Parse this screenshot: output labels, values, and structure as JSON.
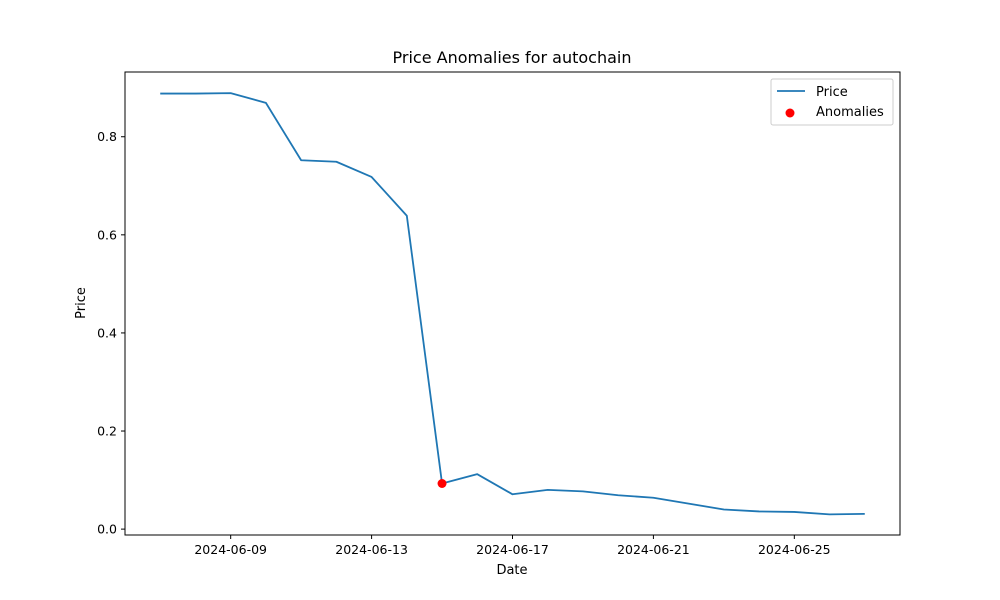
{
  "chart_data": {
    "type": "line",
    "title": "Price Anomalies for autochain",
    "xlabel": "Date",
    "ylabel": "Price",
    "x": [
      "2024-06-07",
      "2024-06-08",
      "2024-06-09",
      "2024-06-10",
      "2024-06-11",
      "2024-06-12",
      "2024-06-13",
      "2024-06-14",
      "2024-06-15",
      "2024-06-16",
      "2024-06-17",
      "2024-06-18",
      "2024-06-19",
      "2024-06-20",
      "2024-06-21",
      "2024-06-22",
      "2024-06-23",
      "2024-06-24",
      "2024-06-25",
      "2024-06-26",
      "2024-06-27"
    ],
    "series": [
      {
        "name": "Price",
        "color": "#1f77b4",
        "values": [
          0.888,
          0.888,
          0.889,
          0.869,
          0.752,
          0.749,
          0.718,
          0.639,
          0.093,
          0.112,
          0.071,
          0.08,
          0.077,
          0.069,
          0.064,
          0.052,
          0.04,
          0.036,
          0.035,
          0.03,
          0.031
        ]
      },
      {
        "name": "Anomalies",
        "kind": "scatter",
        "color": "#ff0000",
        "points": [
          {
            "x": "2024-06-15",
            "y": 0.093
          }
        ]
      }
    ],
    "xlim": [
      "2024-06-06",
      "2024-06-28"
    ],
    "ylim": [
      -0.012,
      0.932
    ],
    "x_ticks": [
      "2024-06-09",
      "2024-06-13",
      "2024-06-17",
      "2024-06-21",
      "2024-06-25"
    ],
    "y_ticks": [
      "0.0",
      "0.2",
      "0.4",
      "0.6",
      "0.8"
    ],
    "grid": false,
    "legend": "upper right"
  }
}
